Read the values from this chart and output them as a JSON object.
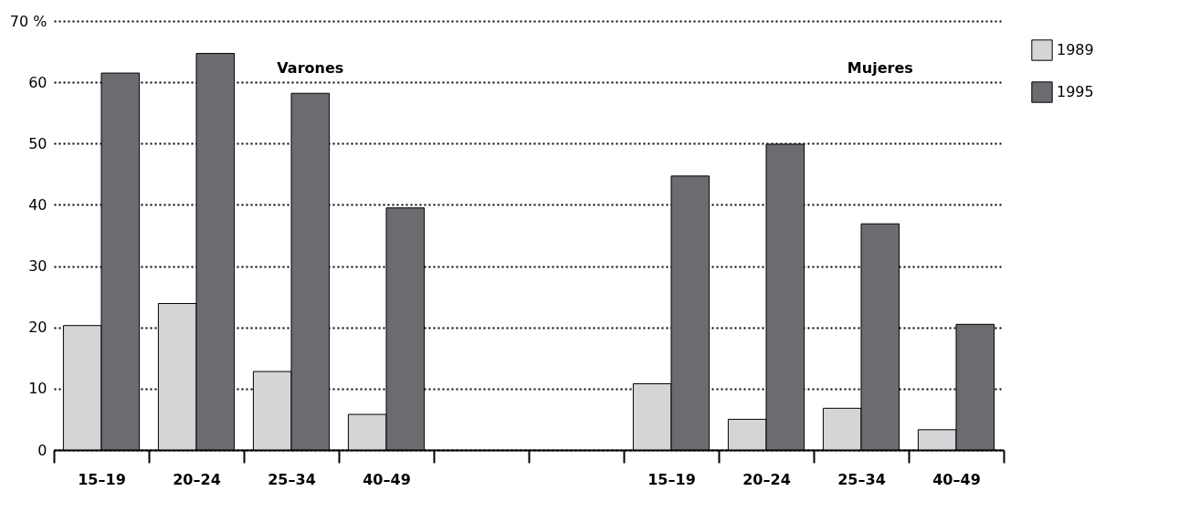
{
  "chart_data": {
    "type": "bar",
    "categories": [
      "15–19",
      "20–24",
      "25–34",
      "40–49",
      null,
      null,
      "15–19",
      "20–24",
      "25–34",
      "40–49"
    ],
    "series": [
      {
        "name": "1989",
        "color": "#d4d5d7",
        "values": [
          20.3,
          23.9,
          12.8,
          5.8,
          null,
          null,
          10.8,
          5.0,
          6.8,
          3.3
        ]
      },
      {
        "name": "1995",
        "color": "#6b6c70",
        "values": [
          61.5,
          64.7,
          58.2,
          39.5,
          null,
          null,
          44.7,
          49.9,
          36.9,
          20.5
        ]
      }
    ],
    "ylim": [
      0,
      70
    ],
    "yticks": [
      0,
      10,
      20,
      30,
      40,
      50,
      60,
      {
        "value": 70,
        "label": "70 %"
      }
    ],
    "grid": "y",
    "legend": "top right",
    "annotations": [
      "Varones",
      "Mujeres"
    ]
  }
}
